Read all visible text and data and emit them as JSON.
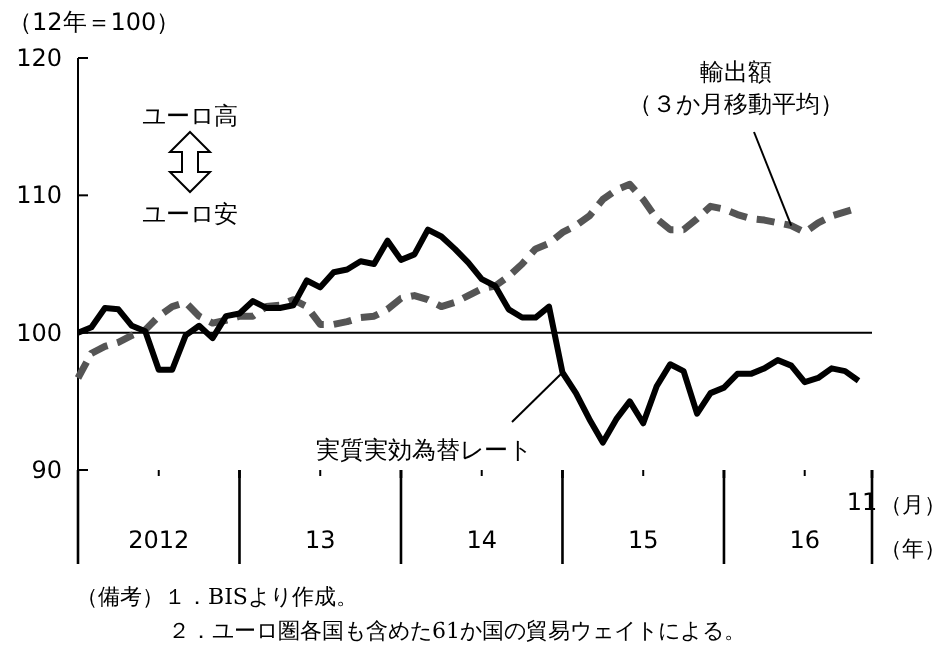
{
  "chart_data": {
    "type": "line",
    "ylabel": "（12年＝100）",
    "xlabel": "（月）",
    "x": [
      "2012-01",
      "2012-02",
      "2012-03",
      "2012-04",
      "2012-05",
      "2012-06",
      "2012-07",
      "2012-08",
      "2012-09",
      "2012-10",
      "2012-11",
      "2012-12",
      "2013-01",
      "2013-02",
      "2013-03",
      "2013-04",
      "2013-05",
      "2013-06",
      "2013-07",
      "2013-08",
      "2013-09",
      "2013-10",
      "2013-11",
      "2013-12",
      "2014-01",
      "2014-02",
      "2014-03",
      "2014-04",
      "2014-05",
      "2014-06",
      "2014-07",
      "2014-08",
      "2014-09",
      "2014-10",
      "2014-11",
      "2014-12",
      "2015-01",
      "2015-02",
      "2015-03",
      "2015-04",
      "2015-05",
      "2015-06",
      "2015-07",
      "2015-08",
      "2015-09",
      "2015-10",
      "2015-11",
      "2015-12",
      "2016-01",
      "2016-02",
      "2016-03",
      "2016-04",
      "2016-05",
      "2016-06",
      "2016-07",
      "2016-08",
      "2016-09",
      "2016-10",
      "2016-11"
    ],
    "series": [
      {
        "color": "#000000",
        "line_style": "solid",
        "values": [
          100,
          100.4,
          101.8,
          101.7,
          100.5,
          100.1,
          97.3,
          97.3,
          99.8,
          100.5,
          99.6,
          101.2,
          101.4,
          102.3,
          101.8,
          101.8,
          102.0,
          103.8,
          103.3,
          104.4,
          104.6,
          105.2,
          105.0,
          106.7,
          105.3,
          105.7,
          107.5,
          107.0,
          106.1,
          105.1,
          103.9,
          103.4,
          101.7,
          101.1,
          101.1,
          101.9,
          97.1,
          95.6,
          93.7,
          92.0,
          93.7,
          95.0,
          93.4,
          96.1,
          97.7,
          97.2,
          94.1,
          95.6,
          96.0,
          97.0,
          97.0,
          97.4,
          98.0,
          97.6,
          96.4,
          96.7,
          97.4,
          97.2,
          96.5
        ]
      },
      {
        "color": "#555555",
        "line_style": "dashed",
        "values": [
          96.7,
          98.5,
          99.0,
          99.3,
          99.8,
          100.2,
          101.2,
          101.9,
          102.2,
          101.2,
          100.7,
          100.9,
          101.2,
          101.2,
          101.9,
          102.0,
          102.4,
          101.9,
          100.6,
          100.6,
          100.8,
          101.1,
          101.2,
          101.7,
          102.5,
          102.7,
          102.4,
          101.9,
          102.2,
          102.7,
          103.2,
          103.4,
          104.1,
          105.0,
          106.1,
          106.5,
          107.3,
          107.8,
          108.5,
          109.7,
          110.4,
          110.8,
          109.7,
          108.3,
          107.5,
          107.5,
          108.3,
          109.2,
          109.0,
          108.6,
          108.3,
          108.2,
          108.0,
          107.8,
          107.3,
          108.0,
          108.5,
          108.8,
          109.1
        ]
      }
    ],
    "xlim": [
      "2012-01",
      "2016-12"
    ],
    "xticks": [
      {
        "value": "2012-07",
        "label": "2012"
      },
      {
        "value": "2013-01",
        "label": null
      },
      {
        "value": "2013-07",
        "label": "13"
      },
      {
        "value": "2014-01",
        "label": null
      },
      {
        "value": "2014-07",
        "label": "14"
      },
      {
        "value": "2015-01",
        "label": null
      },
      {
        "value": "2015-07",
        "label": "15"
      },
      {
        "value": "2016-01",
        "label": null
      },
      {
        "value": "2016-07",
        "label": "16"
      },
      {
        "value": "2016-12",
        "label": null
      }
    ],
    "ylim": [
      90,
      120
    ],
    "yticks": [
      90,
      100,
      110,
      120
    ],
    "ref_lines": [
      {
        "axis": "y",
        "value": 100,
        "color": "#000000"
      }
    ],
    "grid": false,
    "annotations": [
      "ユーロ高",
      "ユーロ安",
      "輸出額",
      {
        "text": "（３か月移動平均）",
        "x": "2016-06",
        "y": 107.8
      },
      {
        "text": "実質実効為替レート",
        "x": "2015-01",
        "y": 97.1
      },
      "（年）",
      "11",
      "（備考）１．BISより作成。",
      "２．ユーロ圏各国も含めた61か国の貿易ウェイトによる。"
    ]
  }
}
